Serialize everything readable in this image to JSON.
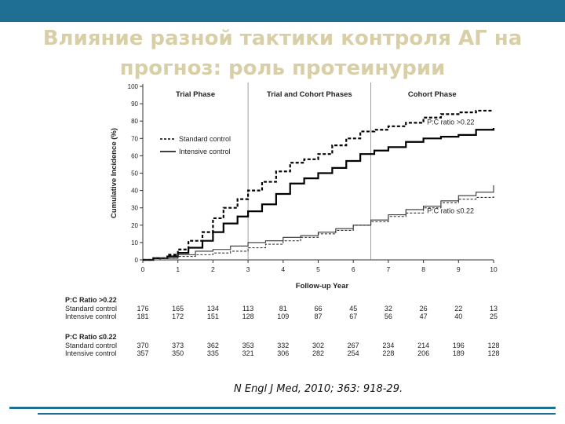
{
  "slide": {
    "title_line1": "Влияние разной тактики контроля АГ на",
    "title_line2": "прогноз: роль протеинурии",
    "citation": "N Engl J Med, 2010; 363: 918-29.",
    "accent_color": "#1f6e94",
    "title_color": "#d9cfa6"
  },
  "chart_data": {
    "type": "line",
    "title": "",
    "xlabel": "Follow-up Year",
    "ylabel": "Cumulative Incidence (%)",
    "xlim": [
      0,
      10
    ],
    "ylim": [
      0,
      100
    ],
    "xticks": [
      "0",
      "1",
      "2",
      "3",
      "4",
      "5",
      "6",
      "7",
      "8",
      "9",
      "10"
    ],
    "yticks": [
      "0",
      "10",
      "20",
      "30",
      "40",
      "50",
      "60",
      "70",
      "80",
      "90",
      "100"
    ],
    "grid": false,
    "phases": [
      {
        "label": "Trial Phase",
        "x_start": 0,
        "x_end": 3
      },
      {
        "label": "Trial and Cohort Phases",
        "x_start": 3,
        "x_end": 6.5
      },
      {
        "label": "Cohort Phase",
        "x_start": 6.5,
        "x_end": 10
      }
    ],
    "phase_boundaries": [
      3,
      6.5
    ],
    "legend": {
      "placement": "top-left",
      "entries": [
        {
          "label": "Standard control",
          "style": "dashed"
        },
        {
          "label": "Intensive control",
          "style": "solid"
        }
      ]
    },
    "annotations": [
      {
        "text": "P:C ratio >0.22",
        "x": 8.1,
        "y": 78
      },
      {
        "text": "P:C ratio ≤0.22",
        "x": 8.1,
        "y": 27
      }
    ],
    "series": [
      {
        "group": "P:C ratio >0.22",
        "style": "dashed",
        "weight": "bold",
        "x": [
          0,
          0.3,
          0.7,
          1.0,
          1.3,
          1.7,
          2.0,
          2.3,
          2.7,
          3.0,
          3.4,
          3.8,
          4.2,
          4.6,
          5.0,
          5.4,
          5.8,
          6.2,
          6.6,
          7.0,
          7.5,
          8.0,
          8.5,
          9.0,
          9.5,
          10.0
        ],
        "y": [
          0,
          1,
          3,
          6,
          11,
          16,
          24,
          30,
          35,
          40,
          45,
          51,
          56,
          58,
          61,
          66,
          70,
          74,
          75,
          77,
          79,
          82,
          84,
          85,
          86,
          86
        ]
      },
      {
        "group": "P:C ratio >0.22",
        "style": "solid",
        "weight": "bold",
        "x": [
          0,
          0.3,
          0.7,
          1.0,
          1.3,
          1.7,
          2.0,
          2.3,
          2.7,
          3.0,
          3.4,
          3.8,
          4.2,
          4.6,
          5.0,
          5.4,
          5.8,
          6.2,
          6.6,
          7.0,
          7.5,
          8.0,
          8.5,
          9.0,
          9.5,
          10.0
        ],
        "y": [
          0,
          1,
          2,
          4,
          7,
          11,
          16,
          21,
          25,
          28,
          32,
          38,
          44,
          47,
          50,
          53,
          57,
          61,
          63,
          65,
          68,
          70,
          71,
          72,
          75,
          76
        ]
      },
      {
        "group": "P:C ratio ≤0.22",
        "style": "dashed",
        "weight": "thin",
        "x": [
          0,
          0.5,
          1.0,
          1.5,
          2.0,
          2.5,
          3.0,
          3.5,
          4.0,
          4.5,
          5.0,
          5.5,
          6.0,
          6.5,
          7.0,
          7.5,
          8.0,
          8.5,
          9.0,
          9.5,
          10.0
        ],
        "y": [
          0,
          1,
          2,
          3,
          4,
          5,
          7,
          9,
          11,
          13,
          15,
          17,
          20,
          22,
          25,
          27,
          30,
          33,
          35,
          36,
          37
        ]
      },
      {
        "group": "P:C ratio ≤0.22",
        "style": "solid",
        "weight": "thin",
        "x": [
          0,
          0.5,
          1.0,
          1.5,
          2.0,
          2.5,
          3.0,
          3.5,
          4.0,
          4.5,
          5.0,
          5.5,
          6.0,
          6.5,
          7.0,
          7.5,
          8.0,
          8.5,
          9.0,
          9.5,
          10.0
        ],
        "y": [
          0,
          1,
          3,
          5,
          6,
          8,
          10,
          11,
          13,
          14,
          16,
          18,
          20,
          23,
          26,
          29,
          31,
          34,
          37,
          39,
          43
        ]
      }
    ],
    "risk_table": {
      "columns": [
        "0",
        "1",
        "2",
        "3",
        "4",
        "5",
        "6",
        "7",
        "8",
        "9",
        "10"
      ],
      "groups": [
        {
          "heading": "P:C Ratio >0.22",
          "rows": [
            {
              "label": "Standard control",
              "values": [
                "176",
                "165",
                "134",
                "113",
                "81",
                "66",
                "45",
                "32",
                "26",
                "22",
                "13"
              ]
            },
            {
              "label": "Intensive control",
              "values": [
                "181",
                "172",
                "151",
                "128",
                "109",
                "87",
                "67",
                "56",
                "47",
                "40",
                "25"
              ]
            }
          ]
        },
        {
          "heading": "P:C Ratio ≤0.22",
          "rows": [
            {
              "label": "Standard control",
              "values": [
                "370",
                "373",
                "362",
                "353",
                "332",
                "302",
                "267",
                "234",
                "214",
                "196",
                "128"
              ]
            },
            {
              "label": "Intensive control",
              "values": [
                "357",
                "350",
                "335",
                "321",
                "306",
                "282",
                "254",
                "228",
                "206",
                "189",
                "128"
              ]
            }
          ]
        }
      ]
    }
  }
}
